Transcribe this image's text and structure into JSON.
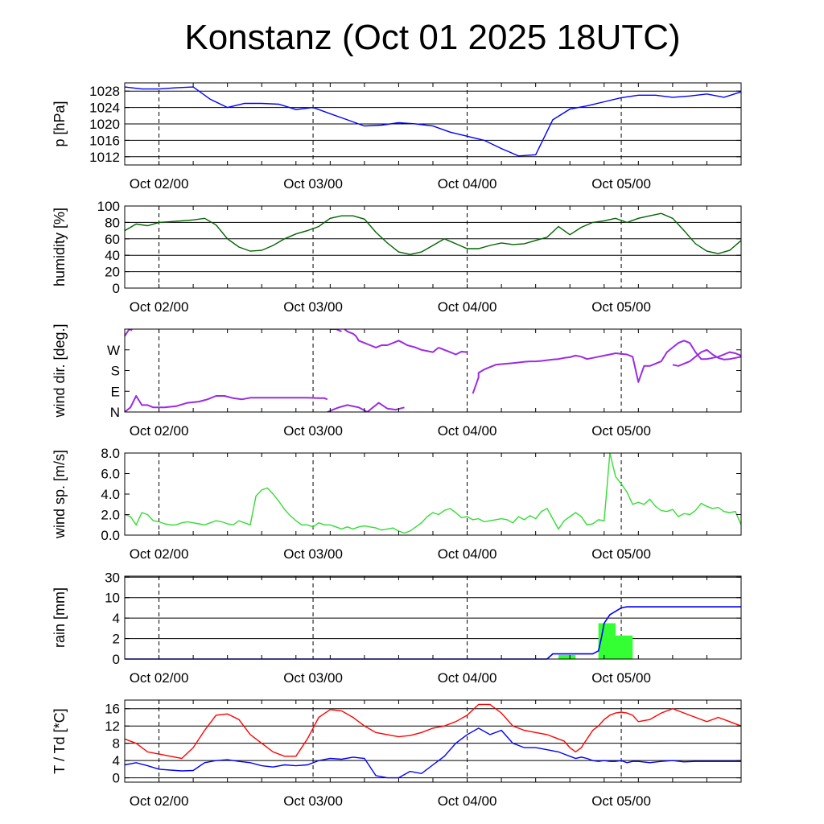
{
  "title": "Konstanz (Oct 01 2025 18UTC)",
  "x_tick_labels": [
    "Oct 02/00",
    "Oct 03/00",
    "Oct 04/00",
    "Oct 05/00"
  ],
  "chart_data": [
    {
      "id": "pressure",
      "type": "line",
      "ylabel": "p [hPa]",
      "ylim": [
        1010,
        1030
      ],
      "yticks": [
        1012,
        1016,
        1020,
        1024,
        1028
      ],
      "grid": true,
      "color": "#0000ff",
      "series": [
        {
          "x": [
            0,
            3,
            6,
            9,
            12,
            15,
            18,
            21,
            24,
            27,
            30,
            33,
            36,
            39,
            42,
            45,
            48,
            51,
            54,
            57,
            60,
            63,
            66,
            69,
            72,
            75,
            78,
            81,
            84,
            87,
            90,
            93,
            96,
            99,
            102,
            105,
            108
          ],
          "y": [
            1029,
            1028.5,
            1028.5,
            1028.8,
            1029,
            1026,
            1024,
            1025,
            1025,
            1024.8,
            1023.5,
            1024,
            1022.5,
            1021,
            1019.5,
            1019.7,
            1020.3,
            1020,
            1019.5,
            1018,
            1017,
            1016,
            1014,
            1012.2,
            1012.5,
            1021,
            1023.6,
            1024.4,
            1025.4,
            1026.4,
            1027,
            1027,
            1026.5,
            1026.8,
            1027.3,
            1026.5,
            1027.8
          ]
        }
      ]
    },
    {
      "id": "humidity",
      "type": "line",
      "ylabel": "humidity [%]",
      "ylim": [
        0,
        100
      ],
      "yticks": [
        0,
        20,
        40,
        60,
        80,
        100
      ],
      "grid": true,
      "color": "#006400",
      "series": [
        {
          "x": [
            0,
            2,
            4,
            6,
            8,
            10,
            12,
            14,
            16,
            18,
            20,
            22,
            24,
            26,
            28,
            30,
            32,
            34,
            36,
            38,
            40,
            42,
            44,
            46,
            48,
            50,
            52,
            54,
            56,
            58,
            60,
            62,
            64,
            66,
            68,
            70,
            72,
            74,
            76,
            78,
            80,
            82,
            84,
            86,
            88,
            90,
            92,
            94,
            96,
            98,
            100,
            102,
            104,
            106,
            108
          ],
          "y": [
            70,
            78,
            76,
            80,
            81,
            82,
            83,
            85,
            77,
            60,
            50,
            45,
            46,
            52,
            60,
            66,
            70,
            75,
            85,
            88,
            88,
            84,
            68,
            55,
            44,
            41,
            44,
            52,
            60,
            54,
            48,
            48,
            52,
            55,
            53,
            54,
            58,
            62,
            75,
            65,
            74,
            80,
            82,
            85,
            80,
            85,
            88,
            91,
            85,
            70,
            54,
            45,
            42,
            46,
            58
          ]
        }
      ]
    },
    {
      "id": "wind-direction",
      "type": "scatter",
      "ylabel": "wind dir. [deg.]",
      "ylim": [
        0,
        360
      ],
      "ytick_labels": [
        "N",
        "E",
        "S",
        "W"
      ],
      "yticks": [
        0,
        90,
        180,
        270
      ],
      "grid": false,
      "color": "#9a2be2",
      "segments": [
        {
          "x": [
            0,
            1,
            2,
            3,
            4,
            5,
            7,
            9,
            11,
            13,
            14.5,
            16,
            17.5,
            19,
            20.5,
            22,
            24,
            26,
            28,
            30,
            32,
            34,
            35,
            35.5
          ],
          "y": [
            0,
            20,
            70,
            30,
            30,
            20,
            20,
            25,
            40,
            45,
            55,
            70,
            70,
            60,
            55,
            62,
            62,
            62,
            62,
            62,
            62,
            60,
            60,
            55
          ]
        },
        {
          "x": [
            35.5,
            36.5,
            37.5,
            39,
            41,
            42.5,
            44.5,
            46,
            47.5,
            49
          ],
          "y": [
            0,
            10,
            20,
            30,
            20,
            0,
            40,
            15,
            10,
            20
          ]
        },
        {
          "x": [
            0,
            0.8,
            1.3
          ],
          "y": [
            330,
            360,
            355
          ]
        },
        {
          "x": [
            36,
            37,
            38
          ],
          "y": [
            360,
            360,
            350
          ]
        },
        {
          "x": [
            38.5,
            39,
            40,
            40.5,
            41,
            42,
            43,
            44,
            45,
            46,
            47,
            48,
            48.8,
            49.5,
            51,
            52,
            54,
            55
          ],
          "y": [
            360,
            350,
            340,
            330,
            310,
            300,
            290,
            280,
            290,
            290,
            300,
            310,
            300,
            290,
            280,
            270,
            260,
            280
          ]
        },
        {
          "x": [
            55,
            56,
            57,
            58,
            59,
            60
          ],
          "y": [
            280,
            270,
            260,
            250,
            262,
            260
          ]
        },
        {
          "x": [
            61,
            62,
            62,
            63,
            64,
            65,
            66,
            67,
            68,
            69,
            70,
            71,
            72,
            73,
            74,
            75,
            76,
            77,
            78,
            79,
            80,
            81,
            82,
            83,
            84,
            85,
            86,
            88,
            89,
            90,
            91,
            92,
            93,
            94,
            95,
            96,
            97,
            98,
            99,
            100,
            101,
            102,
            103,
            104,
            105,
            106,
            107,
            108
          ],
          "y": [
            80,
            150,
            170,
            185,
            195,
            205,
            208,
            210,
            212,
            215,
            218,
            220,
            220,
            222,
            225,
            228,
            230,
            235,
            238,
            245,
            240,
            230,
            235,
            240,
            245,
            250,
            255,
            250,
            240,
            130,
            200,
            200,
            210,
            220,
            260,
            280,
            300,
            310,
            300,
            260,
            230,
            230,
            235,
            240,
            250,
            260,
            255,
            245
          ]
        },
        {
          "x": [
            96,
            97,
            98,
            99,
            100,
            101,
            102,
            103,
            104,
            105,
            106,
            107,
            108
          ],
          "y": [
            205,
            200,
            210,
            220,
            240,
            260,
            270,
            250,
            235,
            228,
            230,
            235,
            240
          ]
        }
      ]
    },
    {
      "id": "wind-speed",
      "type": "line",
      "ylabel": "wind sp. [m/s]",
      "ylim": [
        0,
        8
      ],
      "yticks": [
        0.0,
        2.0,
        4.0,
        6.0,
        8.0
      ],
      "ytick_labels": [
        "0.0",
        "2.0",
        "4.0",
        "6.0",
        "8.0"
      ],
      "grid": false,
      "color": "#33dd33",
      "series": [
        {
          "x": [
            0,
            1,
            2,
            3,
            4,
            5,
            6,
            7,
            8,
            9,
            10,
            11,
            12,
            13,
            14,
            15,
            16,
            17,
            18,
            19,
            20,
            21,
            22,
            23,
            24,
            25,
            26,
            27,
            28,
            29,
            30,
            31,
            32,
            33,
            34,
            35,
            36,
            37,
            38,
            39,
            40,
            41,
            42,
            43,
            44,
            45,
            46,
            47,
            48,
            49,
            50,
            51,
            52,
            53,
            54,
            55,
            56,
            57,
            58,
            59,
            60,
            61,
            62,
            63,
            64,
            65,
            66,
            67,
            68,
            69,
            70,
            71,
            72,
            73,
            74,
            75,
            76,
            77,
            78,
            79,
            80,
            81,
            82,
            83,
            84,
            85,
            86,
            87,
            88,
            89,
            90,
            91,
            92,
            93,
            94,
            95,
            96,
            97,
            98,
            99,
            100,
            101,
            102,
            103,
            104,
            105,
            106,
            107,
            108
          ],
          "y": [
            2.0,
            1.8,
            1.0,
            2.2,
            2.0,
            1.4,
            1.3,
            1.1,
            1.0,
            1.0,
            1.2,
            1.3,
            1.2,
            1.1,
            1.0,
            1.2,
            1.4,
            1.3,
            1.1,
            1.0,
            1.4,
            1.2,
            1.0,
            3.8,
            4.4,
            4.6,
            4.0,
            3.3,
            2.5,
            1.9,
            1.4,
            1.0,
            1.0,
            0.8,
            1.2,
            1.0,
            1.0,
            0.8,
            0.6,
            0.8,
            0.6,
            0.8,
            0.9,
            0.8,
            0.7,
            0.5,
            0.6,
            0.7,
            0.4,
            0.2,
            0.4,
            0.8,
            1.2,
            1.8,
            2.2,
            2.0,
            2.4,
            2.6,
            2.2,
            1.7,
            1.8,
            1.5,
            1.6,
            1.3,
            1.4,
            1.5,
            1.6,
            1.5,
            1.2,
            1.8,
            1.5,
            1.9,
            1.6,
            2.3,
            2.6,
            1.6,
            0.6,
            1.4,
            1.8,
            2.2,
            1.8,
            1.0,
            1.1,
            1.5,
            1.4,
            8.0,
            5.7,
            5.0,
            4.2,
            3.0,
            3.2,
            3.0,
            3.5,
            2.8,
            2.4,
            2.3,
            2.5,
            1.8,
            2.1,
            2.0,
            2.4,
            3.1,
            2.8,
            2.6,
            2.7,
            2.3,
            2.2,
            2.3,
            1.0
          ]
        }
      ]
    },
    {
      "id": "rain",
      "type": "bar+line",
      "ylabel": "rain [mm]",
      "yticks": [
        0,
        2,
        4,
        10,
        30
      ],
      "grid": true,
      "bar_color": "#33ff33",
      "line_color": "#0000ff",
      "bars": [
        {
          "x_start": 76,
          "x_end": 79,
          "value": 0.4
        },
        {
          "x_start": 83,
          "x_end": 86,
          "value": 3.5
        },
        {
          "x_start": 86,
          "x_end": 89,
          "value": 2.3
        }
      ],
      "accumulation": {
        "x": [
          0,
          74,
          75,
          79,
          82,
          83,
          83.5,
          84,
          85,
          86,
          87,
          88,
          108
        ],
        "y": [
          0,
          0,
          0.5,
          0.5,
          0.5,
          0.8,
          2.0,
          3.5,
          5.0,
          6.0,
          7.0,
          7.3,
          7.3
        ]
      }
    },
    {
      "id": "temperature",
      "type": "line",
      "ylabel": "T / Td [*C]",
      "ylim": [
        -1,
        18
      ],
      "yticks": [
        0,
        4,
        8,
        12,
        16
      ],
      "grid": true,
      "series": [
        {
          "name": "T",
          "color": "#ff0000",
          "x": [
            0,
            2,
            4,
            6,
            8,
            10,
            12,
            14,
            16,
            18,
            20,
            22,
            24,
            26,
            28,
            30,
            32,
            34,
            36,
            38,
            40,
            42,
            44,
            46,
            48,
            50,
            52,
            54,
            56,
            58,
            60,
            62,
            64,
            66,
            68,
            70,
            72,
            74,
            76,
            77,
            78,
            79,
            80,
            81,
            82,
            83,
            84,
            85,
            86,
            87,
            88,
            89,
            90,
            92,
            94,
            96,
            98,
            100,
            102,
            104,
            106,
            108
          ],
          "y": [
            9,
            8,
            6,
            5.5,
            5,
            4.5,
            7,
            11,
            14.5,
            14.8,
            13.5,
            10,
            8,
            6,
            5,
            5,
            9,
            14,
            15.8,
            15.5,
            14,
            12,
            10.5,
            10,
            9.5,
            9.8,
            10.5,
            11.5,
            12,
            13,
            14.5,
            17,
            17,
            15,
            12,
            11,
            10.5,
            10,
            9,
            8.5,
            7,
            6,
            7,
            9,
            11,
            12,
            13.5,
            14.5,
            15,
            15.2,
            15,
            14.5,
            13,
            13.5,
            15,
            16,
            15,
            14,
            13,
            14,
            13,
            12
          ]
        },
        {
          "name": "Td",
          "color": "#0000ff",
          "x": [
            0,
            2,
            4,
            6,
            8,
            10,
            12,
            14,
            16,
            18,
            20,
            22,
            24,
            26,
            28,
            30,
            32,
            34,
            36,
            38,
            40,
            42,
            44,
            46,
            48,
            50,
            52,
            54,
            56,
            58,
            60,
            62,
            64,
            66,
            68,
            70,
            72,
            74,
            76,
            77,
            78,
            79,
            80,
            81,
            82,
            83,
            84,
            85,
            86,
            87,
            88,
            89,
            90,
            92,
            94,
            96,
            98,
            100,
            102,
            104,
            106,
            108
          ],
          "y": [
            3,
            3.5,
            2.8,
            2,
            1.8,
            1.6,
            1.7,
            3.5,
            4,
            4.2,
            3.8,
            3.5,
            2.8,
            2.5,
            3,
            2.8,
            3,
            4,
            4.5,
            4.3,
            4.8,
            4.5,
            0.5,
            0,
            0,
            1.5,
            1,
            3,
            5,
            8,
            10,
            11.5,
            10,
            11,
            8,
            7,
            7,
            6.5,
            6,
            5.5,
            5,
            4.5,
            4.8,
            4.5,
            4,
            3.8,
            4,
            3.8,
            3.8,
            4,
            3.5,
            3.8,
            3.8,
            3.5,
            3.8,
            4,
            3.7,
            3.8,
            3.8,
            3.8,
            3.8,
            3.8
          ]
        }
      ]
    }
  ]
}
